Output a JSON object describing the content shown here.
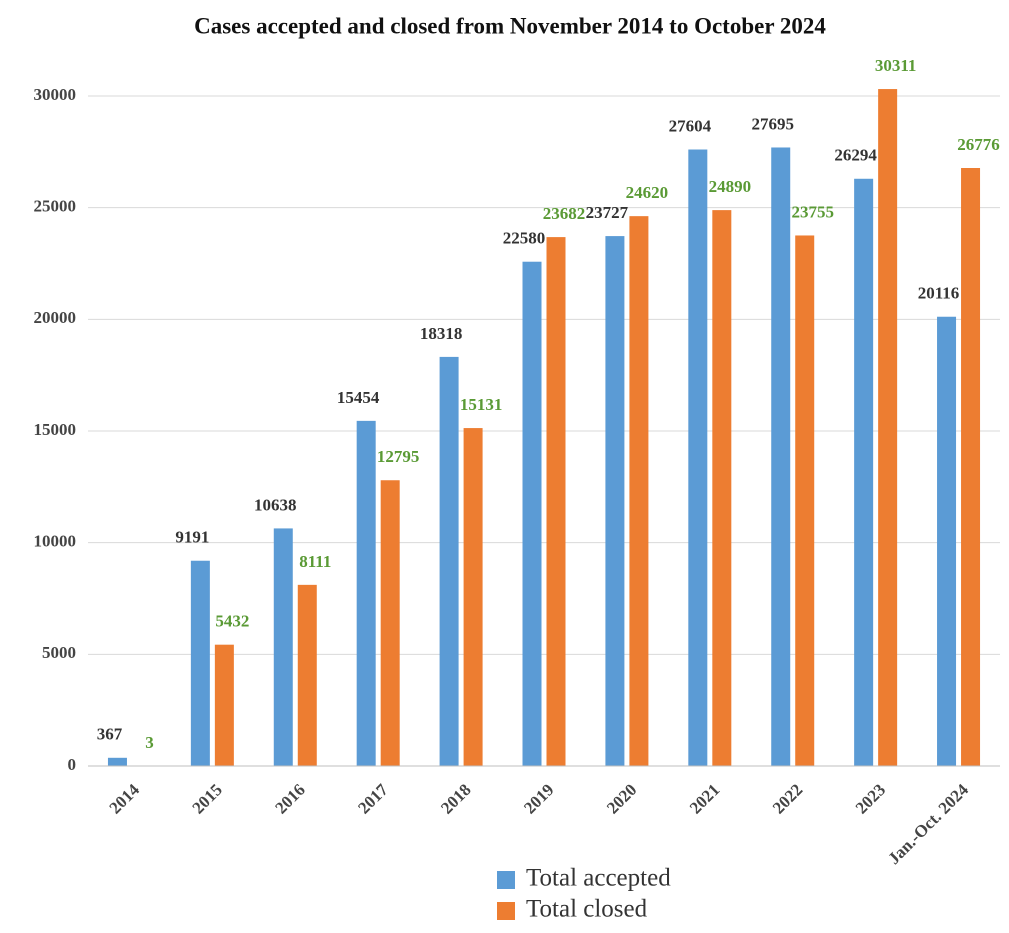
{
  "chart_data": {
    "type": "bar",
    "title": "Cases accepted and closed from November 2014 to October 2024",
    "categories": [
      "2014",
      "2015",
      "2016",
      "2017",
      "2018",
      "2019",
      "2020",
      "2021",
      "2022",
      "2023",
      "Jan.-Oct. 2024"
    ],
    "series": [
      {
        "name": "Total accepted",
        "color": "#5b9bd5",
        "label_color": "#333333",
        "values": [
          367,
          9191,
          10638,
          15454,
          18318,
          22580,
          23727,
          27604,
          27695,
          26294,
          20116
        ]
      },
      {
        "name": "Total closed",
        "color": "#ed7d31",
        "label_color": "#5a9a35",
        "values": [
          3,
          5432,
          8111,
          12795,
          15131,
          23682,
          24620,
          24890,
          23755,
          30311,
          26776
        ]
      }
    ],
    "ylim": [
      0,
      30000
    ],
    "yticks": [
      0,
      5000,
      10000,
      15000,
      20000,
      25000,
      30000
    ],
    "grid": true,
    "legend": "bottom"
  }
}
